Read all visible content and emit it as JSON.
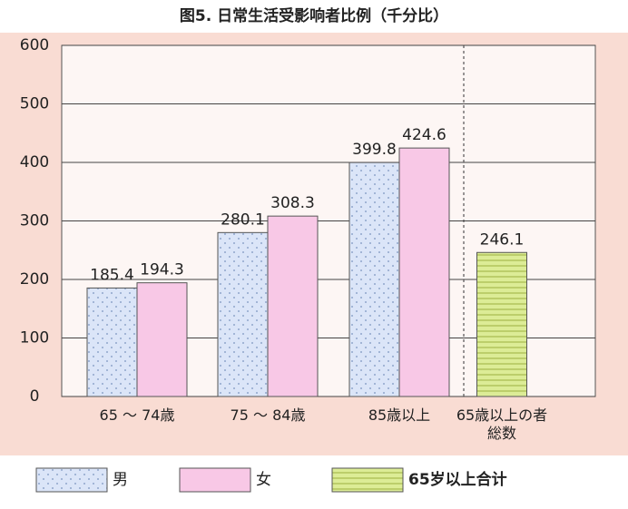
{
  "chart_data": {
    "type": "bar",
    "title": "图5. 日常生活受影响者比例（千分比）",
    "categories": [
      "65 ～ 74歳",
      "75 ～ 84歳",
      "85歳以上",
      "65歳以上の者総数"
    ],
    "series": [
      {
        "name": "男",
        "color": "#dbe5f8",
        "values": [
          185.4,
          280.1,
          399.8,
          null
        ]
      },
      {
        "name": "女",
        "color": "#f8c8e6",
        "values": [
          194.3,
          308.3,
          424.6,
          null
        ]
      },
      {
        "name": "65岁以上合计",
        "color": "#dcec96",
        "values": [
          null,
          null,
          null,
          246.1
        ]
      }
    ],
    "ylim": [
      0,
      600
    ],
    "yticks": [
      0,
      100,
      200,
      300,
      400,
      500,
      600
    ],
    "grid": true,
    "legend": "bottom"
  }
}
